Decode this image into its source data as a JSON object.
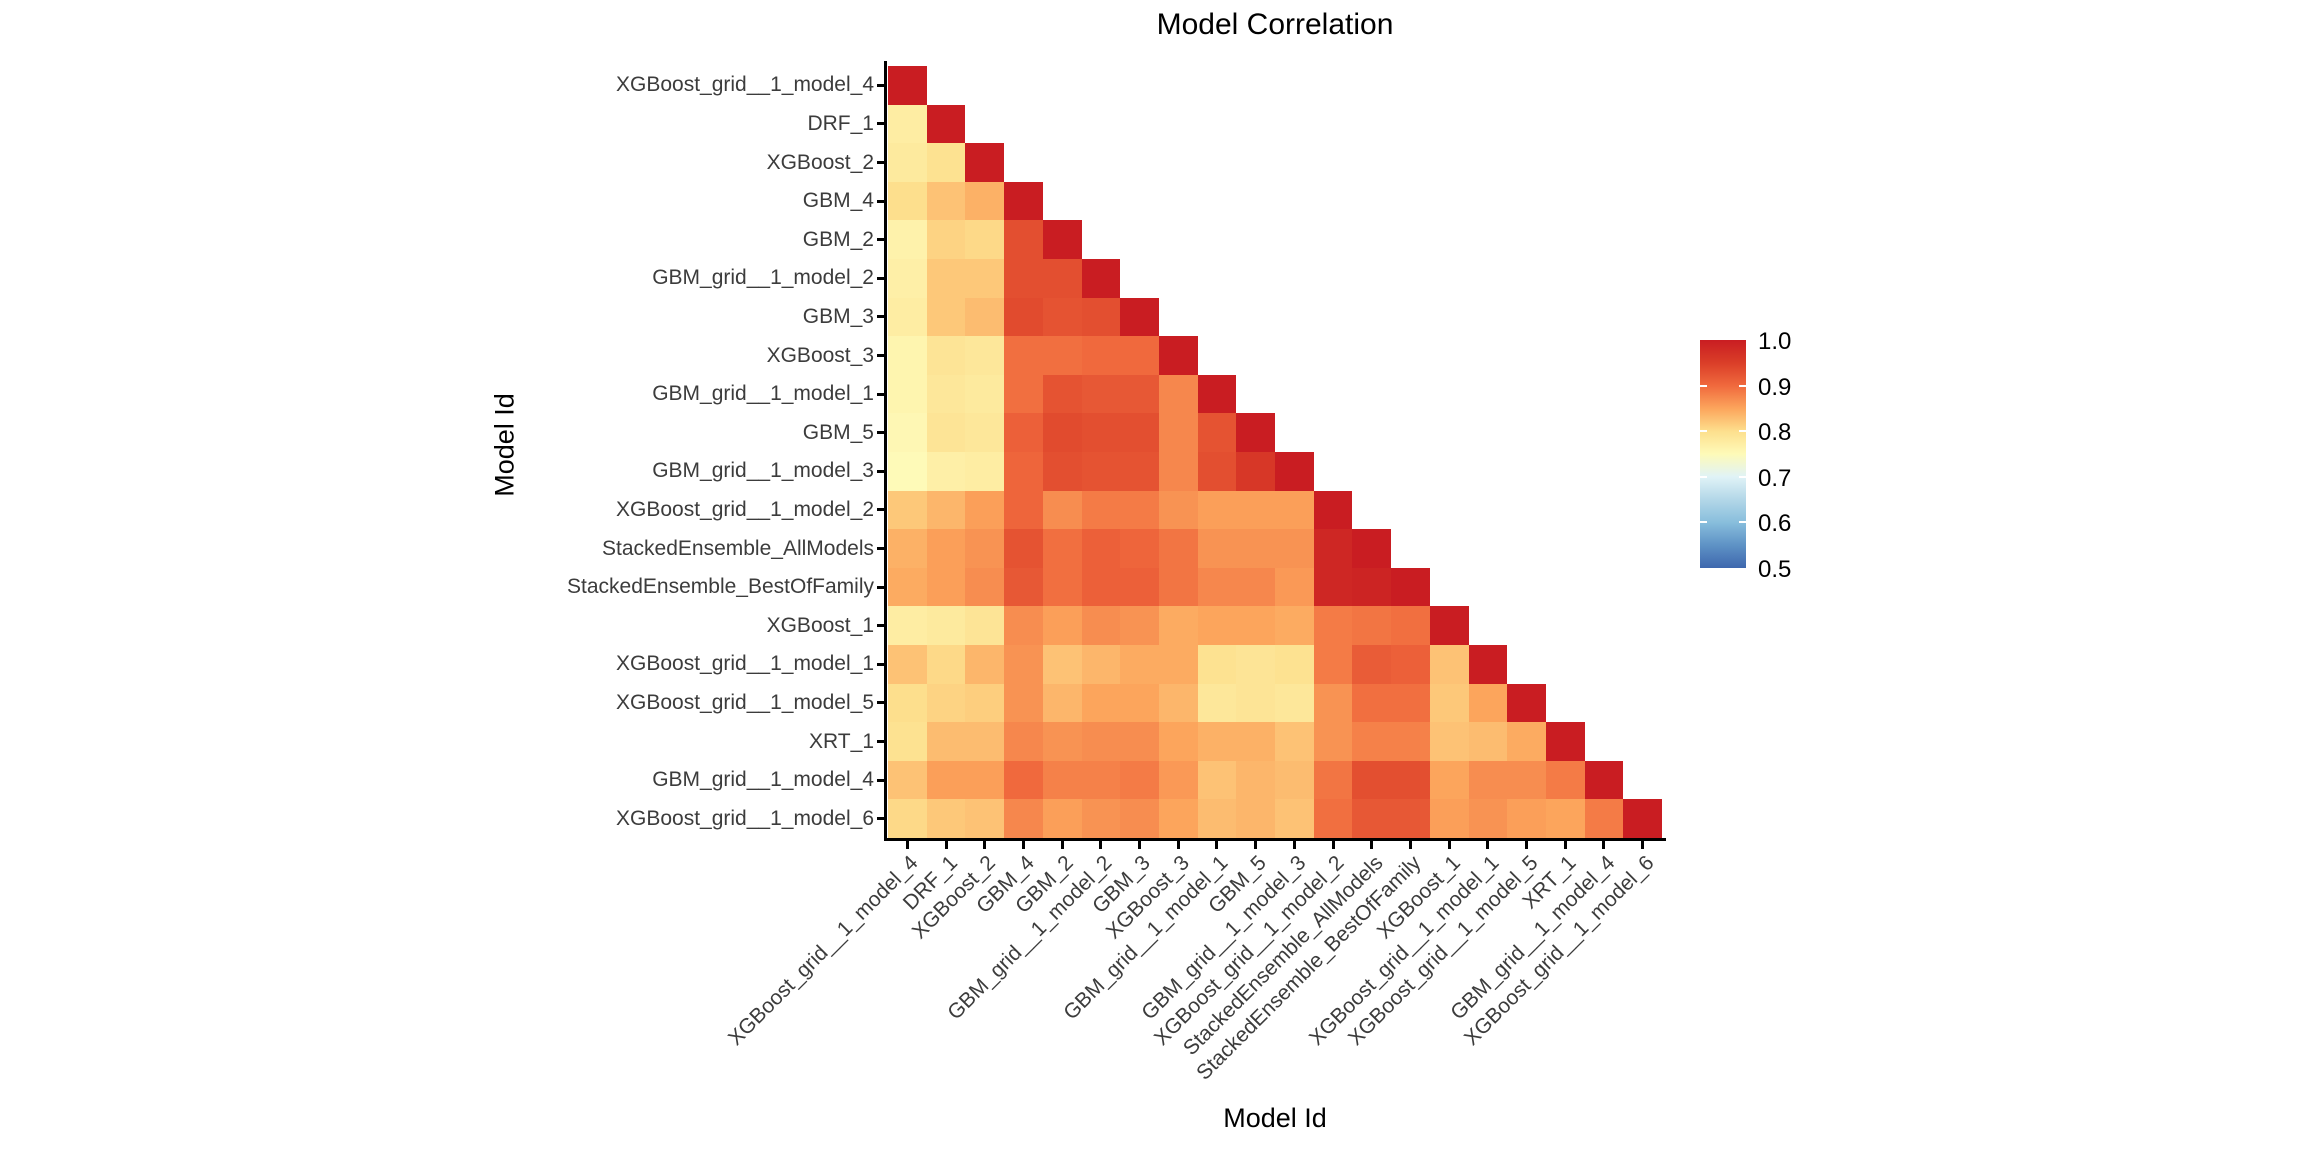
{
  "chart": {
    "title": "Model Correlation",
    "x_axis_title": "Model Id",
    "y_axis_title": "Model Id"
  },
  "colorbar": {
    "tick_labels": [
      "1.0",
      "0.9",
      "0.8",
      "0.7",
      "0.6",
      "0.5"
    ]
  },
  "chart_data": {
    "type": "heatmap",
    "title": "Model Correlation",
    "xlabel": "Model Id",
    "ylabel": "Model Id",
    "shape": "lower-triangular",
    "grid": false,
    "legend_position": "right",
    "categories": [
      "XGBoost_grid__1_model_4",
      "DRF_1",
      "XGBoost_2",
      "GBM_4",
      "GBM_2",
      "GBM_grid__1_model_2",
      "GBM_3",
      "XGBoost_3",
      "GBM_grid__1_model_1",
      "GBM_5",
      "GBM_grid__1_model_3",
      "XGBoost_grid__1_model_2",
      "StackedEnsemble_AllModels",
      "StackedEnsemble_BestOfFamily",
      "XGBoost_1",
      "XGBoost_grid__1_model_1",
      "XGBoost_grid__1_model_5",
      "XRT_1",
      "GBM_grid__1_model_4",
      "XGBoost_grid__1_model_6"
    ],
    "matrix": [
      [
        1.0,
        null,
        null,
        null,
        null,
        null,
        null,
        null,
        null,
        null,
        null,
        null,
        null,
        null,
        null,
        null,
        null,
        null,
        null,
        null
      ],
      [
        0.775,
        1.0,
        null,
        null,
        null,
        null,
        null,
        null,
        null,
        null,
        null,
        null,
        null,
        null,
        null,
        null,
        null,
        null,
        null,
        null
      ],
      [
        0.78,
        0.795,
        1.0,
        null,
        null,
        null,
        null,
        null,
        null,
        null,
        null,
        null,
        null,
        null,
        null,
        null,
        null,
        null,
        null,
        null
      ],
      [
        0.8,
        0.825,
        0.84,
        1.0,
        null,
        null,
        null,
        null,
        null,
        null,
        null,
        null,
        null,
        null,
        null,
        null,
        null,
        null,
        null,
        null
      ],
      [
        0.765,
        0.81,
        0.805,
        0.93,
        1.0,
        null,
        null,
        null,
        null,
        null,
        null,
        null,
        null,
        null,
        null,
        null,
        null,
        null,
        null,
        null
      ],
      [
        0.77,
        0.82,
        0.82,
        0.93,
        0.93,
        1.0,
        null,
        null,
        null,
        null,
        null,
        null,
        null,
        null,
        null,
        null,
        null,
        null,
        null,
        null
      ],
      [
        0.775,
        0.82,
        0.83,
        0.935,
        0.925,
        0.93,
        1.0,
        null,
        null,
        null,
        null,
        null,
        null,
        null,
        null,
        null,
        null,
        null,
        null,
        null
      ],
      [
        0.76,
        0.79,
        0.785,
        0.895,
        0.895,
        0.9,
        0.9,
        1.0,
        null,
        null,
        null,
        null,
        null,
        null,
        null,
        null,
        null,
        null,
        null,
        null
      ],
      [
        0.76,
        0.785,
        0.78,
        0.895,
        0.925,
        0.92,
        0.92,
        0.875,
        1.0,
        null,
        null,
        null,
        null,
        null,
        null,
        null,
        null,
        null,
        null,
        null
      ],
      [
        0.755,
        0.79,
        0.785,
        0.91,
        0.935,
        0.93,
        0.93,
        0.875,
        0.925,
        1.0,
        null,
        null,
        null,
        null,
        null,
        null,
        null,
        null,
        null,
        null
      ],
      [
        0.75,
        0.77,
        0.775,
        0.905,
        0.93,
        0.925,
        0.925,
        0.875,
        0.93,
        0.96,
        1.0,
        null,
        null,
        null,
        null,
        null,
        null,
        null,
        null,
        null
      ],
      [
        0.82,
        0.835,
        0.855,
        0.905,
        0.87,
        0.885,
        0.885,
        0.865,
        0.855,
        0.855,
        0.855,
        1.0,
        null,
        null,
        null,
        null,
        null,
        null,
        null,
        null
      ],
      [
        0.84,
        0.855,
        0.865,
        0.925,
        0.895,
        0.91,
        0.905,
        0.89,
        0.865,
        0.865,
        0.865,
        0.985,
        1.0,
        null,
        null,
        null,
        null,
        null,
        null,
        null
      ],
      [
        0.845,
        0.855,
        0.87,
        0.92,
        0.895,
        0.91,
        0.91,
        0.89,
        0.875,
        0.875,
        0.86,
        0.985,
        0.99,
        1.0,
        null,
        null,
        null,
        null,
        null,
        null
      ],
      [
        0.775,
        0.78,
        0.79,
        0.87,
        0.855,
        0.87,
        0.865,
        0.845,
        0.85,
        0.85,
        0.845,
        0.885,
        0.89,
        0.895,
        1.0,
        null,
        null,
        null,
        null,
        null
      ],
      [
        0.825,
        0.805,
        0.835,
        0.865,
        0.825,
        0.835,
        0.845,
        0.845,
        0.795,
        0.79,
        0.795,
        0.885,
        0.915,
        0.91,
        0.825,
        1.0,
        null,
        null,
        null,
        null
      ],
      [
        0.8,
        0.81,
        0.815,
        0.865,
        0.835,
        0.85,
        0.85,
        0.835,
        0.785,
        0.79,
        0.785,
        0.865,
        0.895,
        0.895,
        0.82,
        0.85,
        1.0,
        null,
        null,
        null
      ],
      [
        0.795,
        0.83,
        0.83,
        0.875,
        0.865,
        0.87,
        0.87,
        0.85,
        0.84,
        0.84,
        0.825,
        0.865,
        0.88,
        0.88,
        0.825,
        0.83,
        0.845,
        1.0,
        null,
        null
      ],
      [
        0.825,
        0.855,
        0.855,
        0.9,
        0.88,
        0.88,
        0.885,
        0.86,
        0.825,
        0.835,
        0.83,
        0.89,
        0.93,
        0.93,
        0.85,
        0.87,
        0.87,
        0.885,
        1.0,
        null
      ],
      [
        0.805,
        0.82,
        0.825,
        0.875,
        0.855,
        0.865,
        0.87,
        0.85,
        0.83,
        0.835,
        0.825,
        0.895,
        0.92,
        0.92,
        0.855,
        0.865,
        0.855,
        0.85,
        0.885,
        1.0
      ]
    ],
    "colorscale": {
      "min": 0.5,
      "max": 1.0,
      "palette": "RdYlBu_r",
      "stops": [
        [
          0.5,
          "#3E67AE"
        ],
        [
          0.55,
          "#5E92C5"
        ],
        [
          0.6,
          "#88BEDC"
        ],
        [
          0.65,
          "#B3D7E8"
        ],
        [
          0.7,
          "#E0F3F7"
        ],
        [
          0.75,
          "#FEFAB8"
        ],
        [
          0.8,
          "#FDDF8D"
        ],
        [
          0.85,
          "#FCA55C"
        ],
        [
          0.9,
          "#F0693D"
        ],
        [
          0.95,
          "#DA3E28"
        ],
        [
          1.0,
          "#C91D22"
        ]
      ]
    }
  }
}
